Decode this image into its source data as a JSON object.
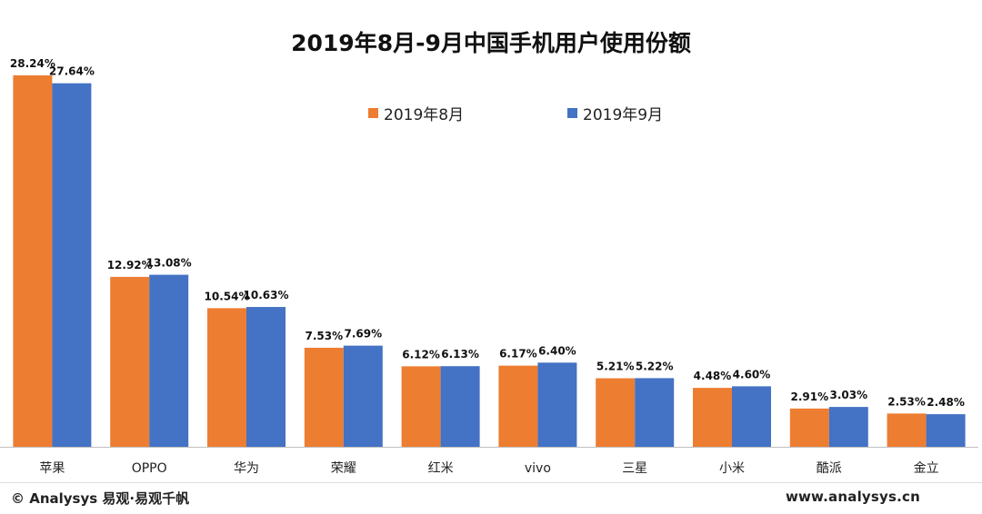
{
  "title": "2019年8月-9月中国手机用户使用份额",
  "legend": [
    {
      "label": "2019年8月",
      "color": "#ED7D31"
    },
    {
      "label": "2019年9月",
      "color": "#4472C4"
    }
  ],
  "chart_data": {
    "type": "bar",
    "title": "2019年8月-9月中国手机用户使用份额",
    "categories": [
      "苹果",
      "OPPO",
      "华为",
      "荣耀",
      "红米",
      "vivo",
      "三星",
      "小米",
      "酷派",
      "金立"
    ],
    "series": [
      {
        "name": "2019年8月",
        "color": "#ED7D31",
        "values": [
          28.24,
          12.92,
          10.54,
          7.53,
          6.12,
          6.17,
          5.21,
          4.48,
          2.91,
          2.53
        ],
        "labels": [
          "28.24%",
          "12.92%",
          "10.54%",
          "7.53%",
          "6.12%",
          "6.17%",
          "5.21%",
          "4.48%",
          "2.91%",
          "2.53%"
        ]
      },
      {
        "name": "2019年9月",
        "color": "#4472C4",
        "values": [
          27.64,
          13.08,
          10.63,
          7.69,
          6.13,
          6.4,
          5.22,
          4.6,
          3.03,
          2.48
        ],
        "labels": [
          "27.64%",
          "13.08%",
          "10.63%",
          "7.69%",
          "6.13%",
          "6.40%",
          "5.22%",
          "4.60%",
          "3.03%",
          "2.48%"
        ]
      }
    ],
    "xlabel": "",
    "ylabel": "",
    "ylim": [
      0,
      28.24
    ],
    "grid": false,
    "legend_position": "top-center"
  },
  "footer": {
    "left": "© Analysys 易观·易观千帆",
    "right": "www.analysys.cn"
  }
}
